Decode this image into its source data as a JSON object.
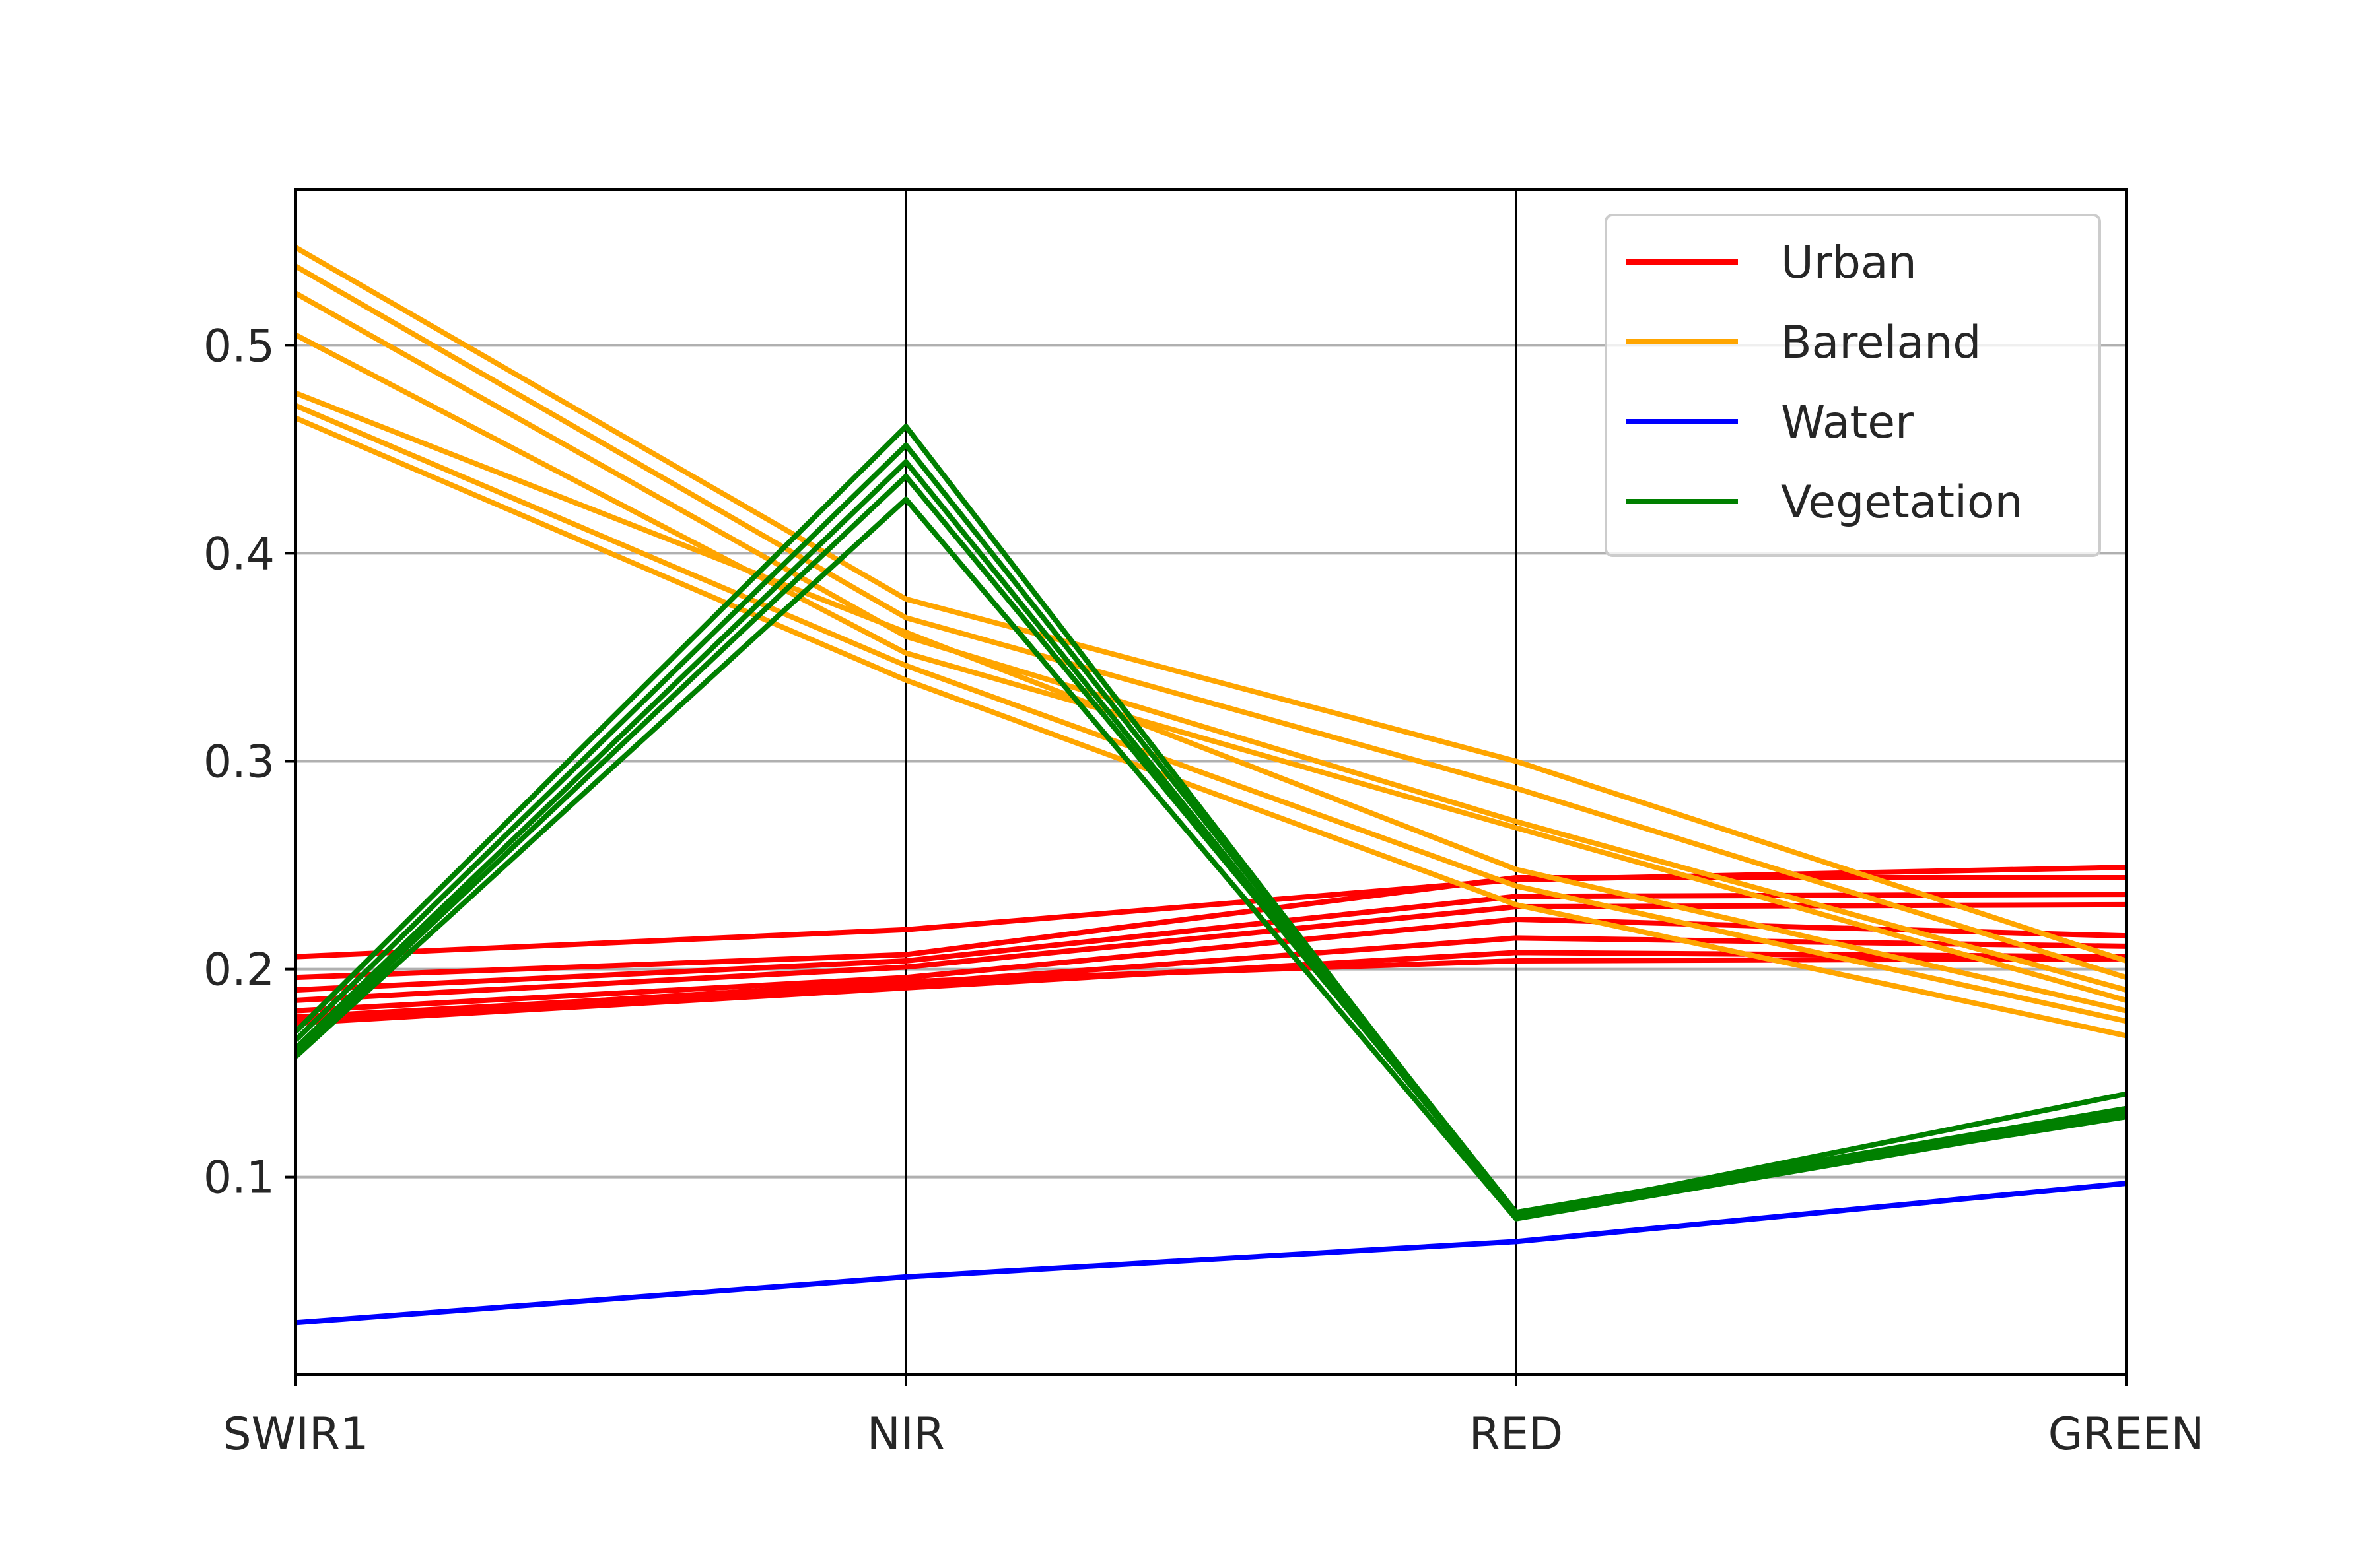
{
  "chart_data": {
    "type": "line",
    "subtype": "parallel-coordinates",
    "categories": [
      "SWIR1",
      "NIR",
      "RED",
      "GREEN"
    ],
    "ylim": [
      0.005,
      0.575
    ],
    "yticks": [
      0.1,
      0.2,
      0.3,
      0.4,
      0.5
    ],
    "ytick_labels": [
      "0.1",
      "0.2",
      "0.3",
      "0.4",
      "0.5"
    ],
    "grid": true,
    "legend_position": "top-right",
    "colors": {
      "Urban": "#ff0000",
      "Bareland": "#ffa500",
      "Water": "#0000ff",
      "Vegetation": "#008000"
    },
    "legend": [
      "Urban",
      "Bareland",
      "Water",
      "Vegetation"
    ],
    "series": [
      {
        "class": "Urban",
        "values": [
          0.206,
          0.219,
          0.243,
          0.249
        ]
      },
      {
        "class": "Urban",
        "values": [
          0.196,
          0.207,
          0.244,
          0.244
        ]
      },
      {
        "class": "Urban",
        "values": [
          0.19,
          0.204,
          0.235,
          0.236
        ]
      },
      {
        "class": "Urban",
        "values": [
          0.185,
          0.201,
          0.23,
          0.231
        ]
      },
      {
        "class": "Urban",
        "values": [
          0.18,
          0.196,
          0.224,
          0.216
        ]
      },
      {
        "class": "Urban",
        "values": [
          0.177,
          0.193,
          0.215,
          0.211
        ]
      },
      {
        "class": "Urban",
        "values": [
          0.174,
          0.191,
          0.208,
          0.206
        ]
      },
      {
        "class": "Urban",
        "values": [
          0.176,
          0.194,
          0.204,
          0.205
        ]
      },
      {
        "class": "Bareland",
        "values": [
          0.547,
          0.378,
          0.3,
          0.204
        ]
      },
      {
        "class": "Bareland",
        "values": [
          0.538,
          0.369,
          0.287,
          0.196
        ]
      },
      {
        "class": "Bareland",
        "values": [
          0.525,
          0.36,
          0.271,
          0.19
        ]
      },
      {
        "class": "Bareland",
        "values": [
          0.505,
          0.352,
          0.268,
          0.185
        ]
      },
      {
        "class": "Bareland",
        "values": [
          0.477,
          0.362,
          0.248,
          0.18
        ]
      },
      {
        "class": "Bareland",
        "values": [
          0.471,
          0.346,
          0.24,
          0.175
        ]
      },
      {
        "class": "Bareland",
        "values": [
          0.465,
          0.339,
          0.231,
          0.168
        ]
      },
      {
        "class": "Water",
        "values": [
          0.03,
          0.052,
          0.069,
          0.097
        ]
      },
      {
        "class": "Vegetation",
        "values": [
          0.17,
          0.461,
          0.081,
          0.14
        ]
      },
      {
        "class": "Vegetation",
        "values": [
          0.166,
          0.452,
          0.083,
          0.133
        ]
      },
      {
        "class": "Vegetation",
        "values": [
          0.162,
          0.444,
          0.082,
          0.131
        ]
      },
      {
        "class": "Vegetation",
        "values": [
          0.16,
          0.437,
          0.083,
          0.129
        ]
      },
      {
        "class": "Vegetation",
        "values": [
          0.158,
          0.426,
          0.08,
          0.13
        ]
      }
    ]
  }
}
